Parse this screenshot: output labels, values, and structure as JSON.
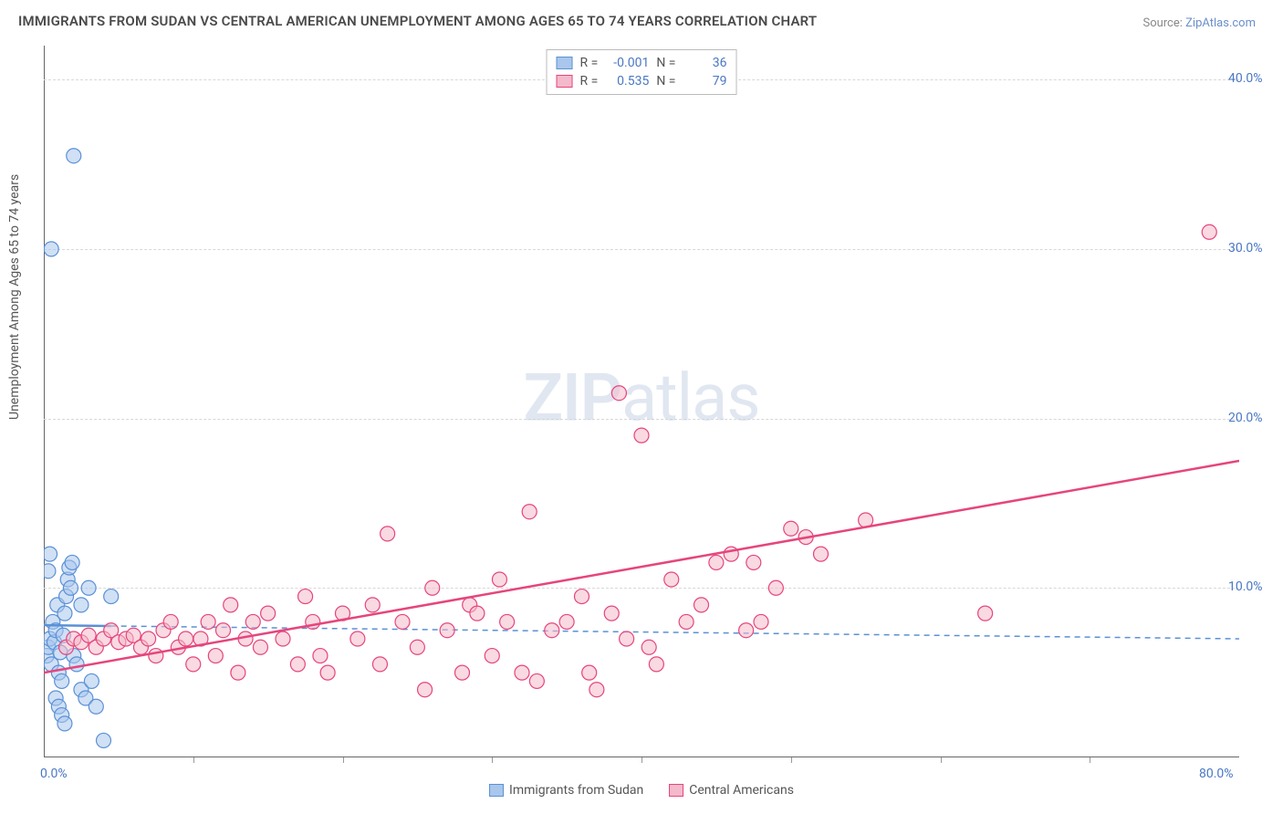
{
  "title": "IMMIGRANTS FROM SUDAN VS CENTRAL AMERICAN UNEMPLOYMENT AMONG AGES 65 TO 74 YEARS CORRELATION CHART",
  "source_label": "Source: ",
  "source_link": "ZipAtlas.com",
  "ylabel": "Unemployment Among Ages 65 to 74 years",
  "watermark_a": "ZIP",
  "watermark_b": "atlas",
  "chart": {
    "type": "scatter",
    "background_color": "#ffffff",
    "grid_color": "#d8d8d8",
    "axis_color": "#666666",
    "tick_label_color": "#4a78c4",
    "xlim": [
      0,
      80
    ],
    "ylim": [
      0,
      42
    ],
    "xtick_left": {
      "pos": 0,
      "label": "0.0%"
    },
    "xtick_right": {
      "pos": 80,
      "label": "80.0%"
    },
    "xtick_minor": [
      10,
      20,
      30,
      40,
      50,
      60,
      70
    ],
    "yticks": [
      {
        "pos": 10,
        "label": "10.0%"
      },
      {
        "pos": 20,
        "label": "20.0%"
      },
      {
        "pos": 30,
        "label": "30.0%"
      },
      {
        "pos": 40,
        "label": "40.0%"
      }
    ],
    "marker_radius": 8,
    "marker_opacity": 0.55,
    "series": [
      {
        "name": "Immigrants from Sudan",
        "color_fill": "#a9c6ec",
        "color_stroke": "#5a91d6",
        "legend_R": "-0.001",
        "legend_N": "36",
        "regression": {
          "x1": 0,
          "y1": 7.8,
          "x2": 80,
          "y2": 7.0,
          "solid_until_x": 4.5
        },
        "points": [
          [
            0.2,
            6.0
          ],
          [
            0.3,
            6.5
          ],
          [
            0.4,
            7.0
          ],
          [
            0.5,
            5.5
          ],
          [
            0.6,
            8.0
          ],
          [
            0.7,
            6.8
          ],
          [
            0.8,
            7.5
          ],
          [
            0.9,
            9.0
          ],
          [
            1.0,
            5.0
          ],
          [
            1.1,
            6.2
          ],
          [
            1.2,
            4.5
          ],
          [
            1.3,
            7.2
          ],
          [
            1.4,
            8.5
          ],
          [
            1.5,
            9.5
          ],
          [
            1.6,
            10.5
          ],
          [
            1.7,
            11.2
          ],
          [
            1.8,
            10.0
          ],
          [
            2.0,
            6.0
          ],
          [
            2.2,
            5.5
          ],
          [
            2.5,
            4.0
          ],
          [
            2.8,
            3.5
          ],
          [
            3.0,
            10.0
          ],
          [
            3.2,
            4.5
          ],
          [
            3.5,
            3.0
          ],
          [
            0.3,
            11.0
          ],
          [
            0.4,
            12.0
          ],
          [
            0.8,
            3.5
          ],
          [
            1.0,
            3.0
          ],
          [
            1.2,
            2.5
          ],
          [
            1.4,
            2.0
          ],
          [
            0.5,
            30.0
          ],
          [
            2.0,
            35.5
          ],
          [
            4.0,
            1.0
          ],
          [
            4.5,
            9.5
          ],
          [
            2.5,
            9.0
          ],
          [
            1.9,
            11.5
          ]
        ]
      },
      {
        "name": "Central Americans",
        "color_fill": "#f4b9cb",
        "color_stroke": "#e6457c",
        "legend_R": "0.535",
        "legend_N": "79",
        "regression": {
          "x1": 0,
          "y1": 5.0,
          "x2": 80,
          "y2": 17.5,
          "solid_until_x": 80
        },
        "points": [
          [
            1.5,
            6.5
          ],
          [
            2.0,
            7.0
          ],
          [
            2.5,
            6.8
          ],
          [
            3.0,
            7.2
          ],
          [
            3.5,
            6.5
          ],
          [
            4.0,
            7.0
          ],
          [
            4.5,
            7.5
          ],
          [
            5.0,
            6.8
          ],
          [
            5.5,
            7.0
          ],
          [
            6.0,
            7.2
          ],
          [
            6.5,
            6.5
          ],
          [
            7.0,
            7.0
          ],
          [
            7.5,
            6.0
          ],
          [
            8.0,
            7.5
          ],
          [
            8.5,
            8.0
          ],
          [
            9.0,
            6.5
          ],
          [
            9.5,
            7.0
          ],
          [
            10.0,
            5.5
          ],
          [
            10.5,
            7.0
          ],
          [
            11.0,
            8.0
          ],
          [
            11.5,
            6.0
          ],
          [
            12.0,
            7.5
          ],
          [
            12.5,
            9.0
          ],
          [
            13.0,
            5.0
          ],
          [
            13.5,
            7.0
          ],
          [
            14.0,
            8.0
          ],
          [
            14.5,
            6.5
          ],
          [
            15.0,
            8.5
          ],
          [
            16.0,
            7.0
          ],
          [
            17.0,
            5.5
          ],
          [
            17.5,
            9.5
          ],
          [
            18.0,
            8.0
          ],
          [
            18.5,
            6.0
          ],
          [
            19.0,
            5.0
          ],
          [
            20.0,
            8.5
          ],
          [
            21.0,
            7.0
          ],
          [
            22.0,
            9.0
          ],
          [
            22.5,
            5.5
          ],
          [
            23.0,
            13.2
          ],
          [
            24.0,
            8.0
          ],
          [
            25.0,
            6.5
          ],
          [
            25.5,
            4.0
          ],
          [
            26.0,
            10.0
          ],
          [
            27.0,
            7.5
          ],
          [
            28.0,
            5.0
          ],
          [
            28.5,
            9.0
          ],
          [
            29.0,
            8.5
          ],
          [
            30.0,
            6.0
          ],
          [
            30.5,
            10.5
          ],
          [
            31.0,
            8.0
          ],
          [
            32.0,
            5.0
          ],
          [
            32.5,
            14.5
          ],
          [
            33.0,
            4.5
          ],
          [
            34.0,
            7.5
          ],
          [
            35.0,
            8.0
          ],
          [
            36.0,
            9.5
          ],
          [
            36.5,
            5.0
          ],
          [
            37.0,
            4.0
          ],
          [
            38.0,
            8.5
          ],
          [
            38.5,
            21.5
          ],
          [
            39.0,
            7.0
          ],
          [
            40.0,
            19.0
          ],
          [
            40.5,
            6.5
          ],
          [
            41.0,
            5.5
          ],
          [
            42.0,
            10.5
          ],
          [
            43.0,
            8.0
          ],
          [
            44.0,
            9.0
          ],
          [
            45.0,
            11.5
          ],
          [
            46.0,
            12.0
          ],
          [
            47.0,
            7.5
          ],
          [
            48.0,
            8.0
          ],
          [
            50.0,
            13.5
          ],
          [
            52.0,
            12.0
          ],
          [
            51.0,
            13.0
          ],
          [
            55.0,
            14.0
          ],
          [
            47.5,
            11.5
          ],
          [
            63.0,
            8.5
          ],
          [
            78.0,
            31.0
          ],
          [
            49.0,
            10.0
          ]
        ]
      }
    ]
  },
  "legend_top": {
    "R_label": "R =",
    "N_label": "N ="
  },
  "bottom_legend": [
    {
      "label": "Immigrants from Sudan"
    },
    {
      "label": "Central Americans"
    }
  ]
}
